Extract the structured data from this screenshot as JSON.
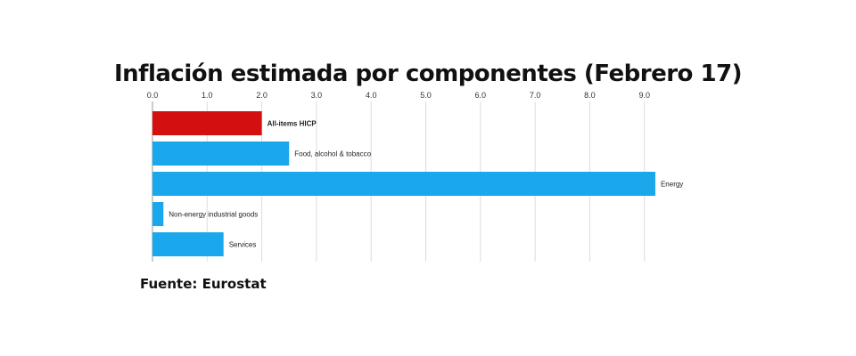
{
  "chart_data": {
    "type": "bar",
    "orientation": "horizontal",
    "title": "Inflación estimada por componentes (Febrero 17)",
    "xlim": [
      0,
      9.5
    ],
    "ticks": [
      "0.0",
      "1.0",
      "2.0",
      "3.0",
      "4.0",
      "5.0",
      "6.0",
      "7.0",
      "8.0",
      "9.0"
    ],
    "tick_values": [
      0,
      1,
      2,
      3,
      4,
      5,
      6,
      7,
      8,
      9
    ],
    "categories": [
      "All-items HICP",
      "Food, alcohol & tobacco",
      "Energy",
      "Non-energy industrial goods",
      "Services"
    ],
    "values": [
      2.0,
      2.5,
      9.2,
      0.2,
      1.3
    ],
    "bar_colors": [
      "#d40f0f",
      "#1aa7ec",
      "#1aa7ec",
      "#1aa7ec",
      "#1aa7ec"
    ],
    "highlight": "All-items HICP",
    "grid": true,
    "legend": "none",
    "source": "Fuente: Eurostat"
  }
}
